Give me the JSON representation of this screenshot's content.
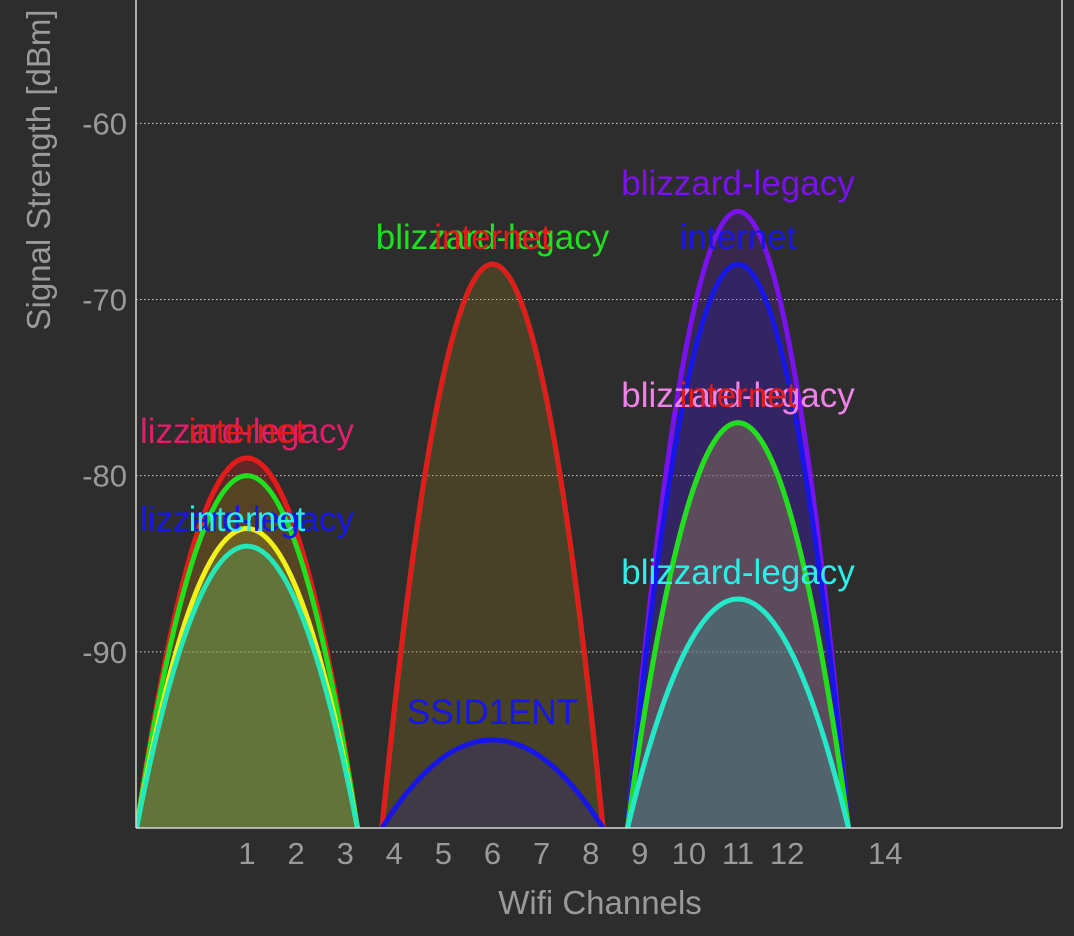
{
  "chart_data": {
    "type": "area",
    "title": "",
    "xlabel": "Wifi Channels",
    "ylabel": "Signal Strength [dBm]",
    "ylim": [
      -100,
      -53
    ],
    "y_ticks": [
      -60,
      -70,
      -80,
      -90
    ],
    "x_ticks": [
      {
        "channel": 1,
        "label": "1"
      },
      {
        "channel": 2,
        "label": "2"
      },
      {
        "channel": 3,
        "label": "3"
      },
      {
        "channel": 4,
        "label": "4"
      },
      {
        "channel": 5,
        "label": "5"
      },
      {
        "channel": 6,
        "label": "6"
      },
      {
        "channel": 7,
        "label": "7"
      },
      {
        "channel": 8,
        "label": "8"
      },
      {
        "channel": 9,
        "label": "9"
      },
      {
        "channel": 10,
        "label": "10"
      },
      {
        "channel": 11,
        "label": "11"
      },
      {
        "channel": 12,
        "label": "12"
      },
      {
        "channel": 14,
        "label": "14"
      }
    ],
    "grid": "horizontal dotted",
    "series": [
      {
        "name": "lizzard-legacy",
        "channel": 1,
        "signal": -79,
        "color": "#e21b1b"
      },
      {
        "name": "internet",
        "channel": 1,
        "signal": -79,
        "color": "#e21b1b"
      },
      {
        "name": "lizzard-legacy",
        "channel": 1,
        "signal": -80,
        "color": "#1fe01f"
      },
      {
        "name": "lizzard-legacy",
        "channel": 1,
        "signal": -83,
        "color": "#f2f21a"
      },
      {
        "name": "internet",
        "channel": 1,
        "signal": -84,
        "color": "#25e8b8"
      },
      {
        "name": "blizzard-legacy",
        "channel": 6,
        "signal": -68,
        "color": "#1fe01f"
      },
      {
        "name": "internet",
        "channel": 6,
        "signal": -68,
        "color": "#e21b1b"
      },
      {
        "name": "SSID1ENT",
        "channel": 6,
        "signal": -95,
        "color": "#1616e8"
      },
      {
        "name": "blizzard-legacy",
        "channel": 11,
        "signal": -65,
        "color": "#7a12f0"
      },
      {
        "name": "internet",
        "channel": 11,
        "signal": -68,
        "color": "#1616e8"
      },
      {
        "name": "blizzard-legacy",
        "channel": 11,
        "signal": -77,
        "color": "#ef82e6"
      },
      {
        "name": "internet",
        "channel": 11,
        "signal": -77,
        "color": "#e21b1b"
      },
      {
        "name": "blizzard-legacy",
        "channel": 11,
        "signal": -77,
        "color": "#1fe01f"
      },
      {
        "name": "blizzard-legacy",
        "channel": 11,
        "signal": -87,
        "color": "#25e8c8"
      }
    ],
    "labels": [
      {
        "text": "lizzard-legacy",
        "channel": 1,
        "color": "#e01f6a"
      },
      {
        "text": "internet",
        "channel": 1,
        "color": "#e21b1b"
      },
      {
        "text": "lizzard-legacy",
        "channel": 1,
        "color": "#1616e8"
      },
      {
        "text": "internet",
        "channel": 1,
        "color": "#2af0e8"
      },
      {
        "text": "blizzard-legacy",
        "channel": 6,
        "color": "#1fe01f"
      },
      {
        "text": "internet",
        "channel": 6,
        "color": "#e21b1b"
      },
      {
        "text": "SSID1ENT",
        "channel": 6,
        "color": "#1616e8"
      },
      {
        "text": "blizzard-legacy",
        "channel": 11,
        "color": "#7a12f0"
      },
      {
        "text": "internet",
        "channel": 11,
        "color": "#1616e8"
      },
      {
        "text": "blizzard-legacy",
        "channel": 11,
        "color": "#ef82e6"
      },
      {
        "text": "internet",
        "channel": 11,
        "color": "#e21b1b"
      },
      {
        "text": "blizzard-legacy",
        "channel": 11,
        "color": "#2af0e8"
      }
    ]
  }
}
